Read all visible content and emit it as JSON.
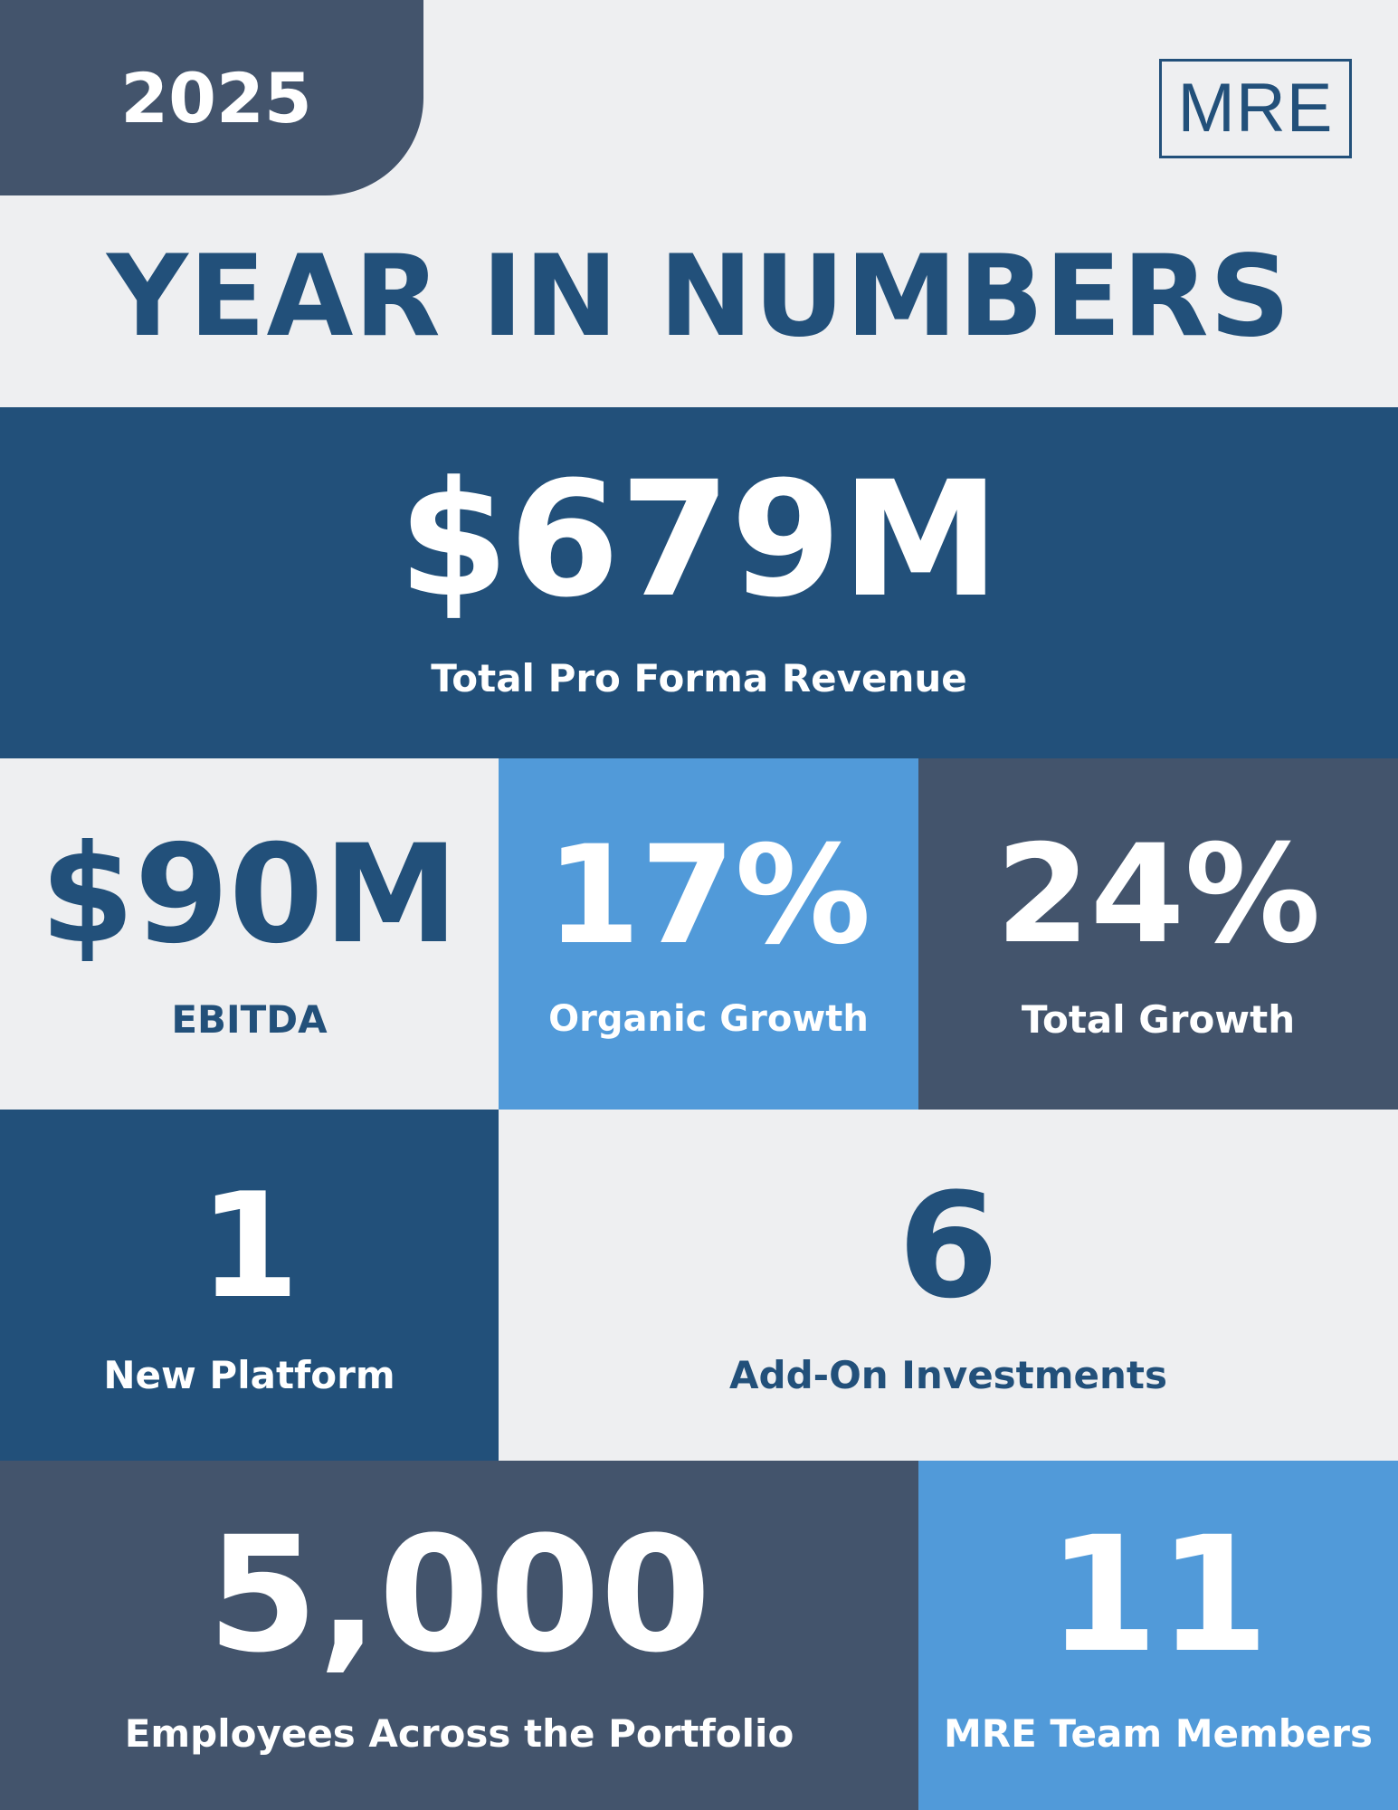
{
  "header": {
    "year": "2025",
    "logo_text": "MRE",
    "title": "YEAR IN NUMBERS"
  },
  "stats": {
    "revenue": {
      "value": "$679M",
      "label": "Total Pro Forma Revenue"
    },
    "ebitda": {
      "value": "$90M",
      "label": "EBITDA"
    },
    "organic_growth": {
      "value": "17%",
      "label": "Organic Growth"
    },
    "total_growth": {
      "value": "24%",
      "label": "Total Growth"
    },
    "new_platform": {
      "value": "1",
      "label": "New Platform"
    },
    "add_on": {
      "value": "6",
      "label": "Add-On Investments"
    },
    "employees": {
      "value": "5,000",
      "label": "Employees Across the Portfolio"
    },
    "team": {
      "value": "11",
      "label": "MRE Team Members"
    }
  },
  "colors": {
    "navy": "#22507a",
    "slate": "#43546c",
    "sky": "#519ad9",
    "light": "#eeeff1"
  }
}
